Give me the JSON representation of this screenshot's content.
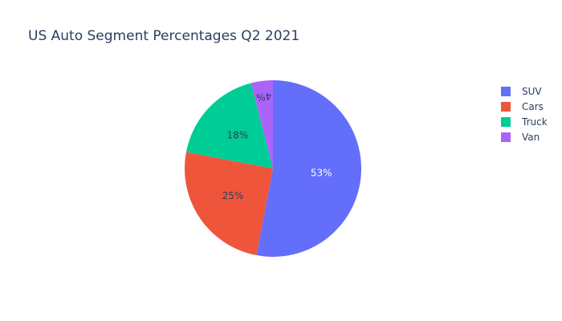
{
  "chart_data": {
    "type": "pie",
    "title": "US Auto Segment Percentages Q2 2021",
    "categories": [
      "SUV",
      "Cars",
      "Truck",
      "Van"
    ],
    "values": [
      53,
      25,
      18,
      4
    ],
    "labels": [
      "53%",
      "25%",
      "18%",
      "4%"
    ],
    "colors": [
      "#636efa",
      "#ef553b",
      "#00cc96",
      "#ab63fa"
    ],
    "label_colors": [
      "#ffffff",
      "#2a3f5f",
      "#2a3f5f",
      "#2a3f5f"
    ],
    "direction": "clockwise",
    "start": "12 o'clock",
    "legend_position": "top-right"
  }
}
